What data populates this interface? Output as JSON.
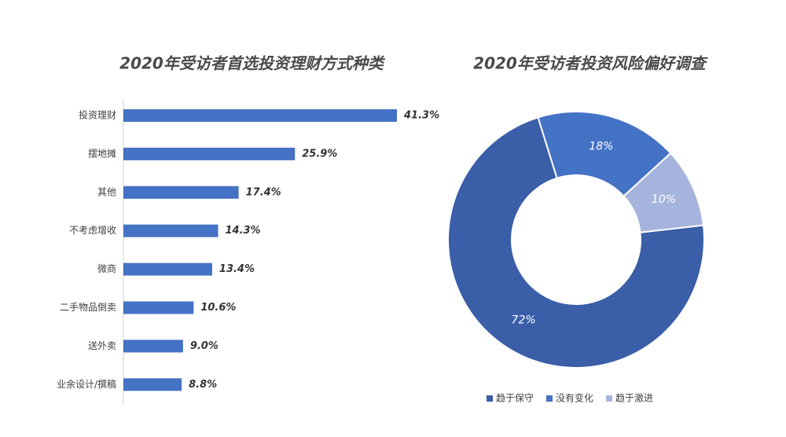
{
  "chart_data": [
    {
      "type": "hbar",
      "title": "2020年受访者首选投资理财方式种类",
      "categories": [
        "投资理财",
        "摆地摊",
        "其他",
        "不考虑增收",
        "微商",
        "二手物品倒卖",
        "送外卖",
        "业余设计/撰稿"
      ],
      "values": [
        41.3,
        25.9,
        17.4,
        14.3,
        13.4,
        10.6,
        9.0,
        8.8
      ],
      "value_labels": [
        "41.3%",
        "25.9%",
        "17.4%",
        "14.3%",
        "13.4%",
        "10.6%",
        "9.0%",
        "8.8%"
      ],
      "color": "#4472c4"
    },
    {
      "type": "donut",
      "title": "2020年受访者投资风险偏好调查",
      "categories": [
        "趋于保守",
        "没有变化",
        "趋于激进"
      ],
      "values": [
        72,
        18,
        10
      ],
      "value_labels": [
        "72%",
        "18%",
        "10%"
      ],
      "colors": [
        "#3a5ea8",
        "#4472c4",
        "#a5b4dc"
      ],
      "legend": "bottom"
    }
  ]
}
